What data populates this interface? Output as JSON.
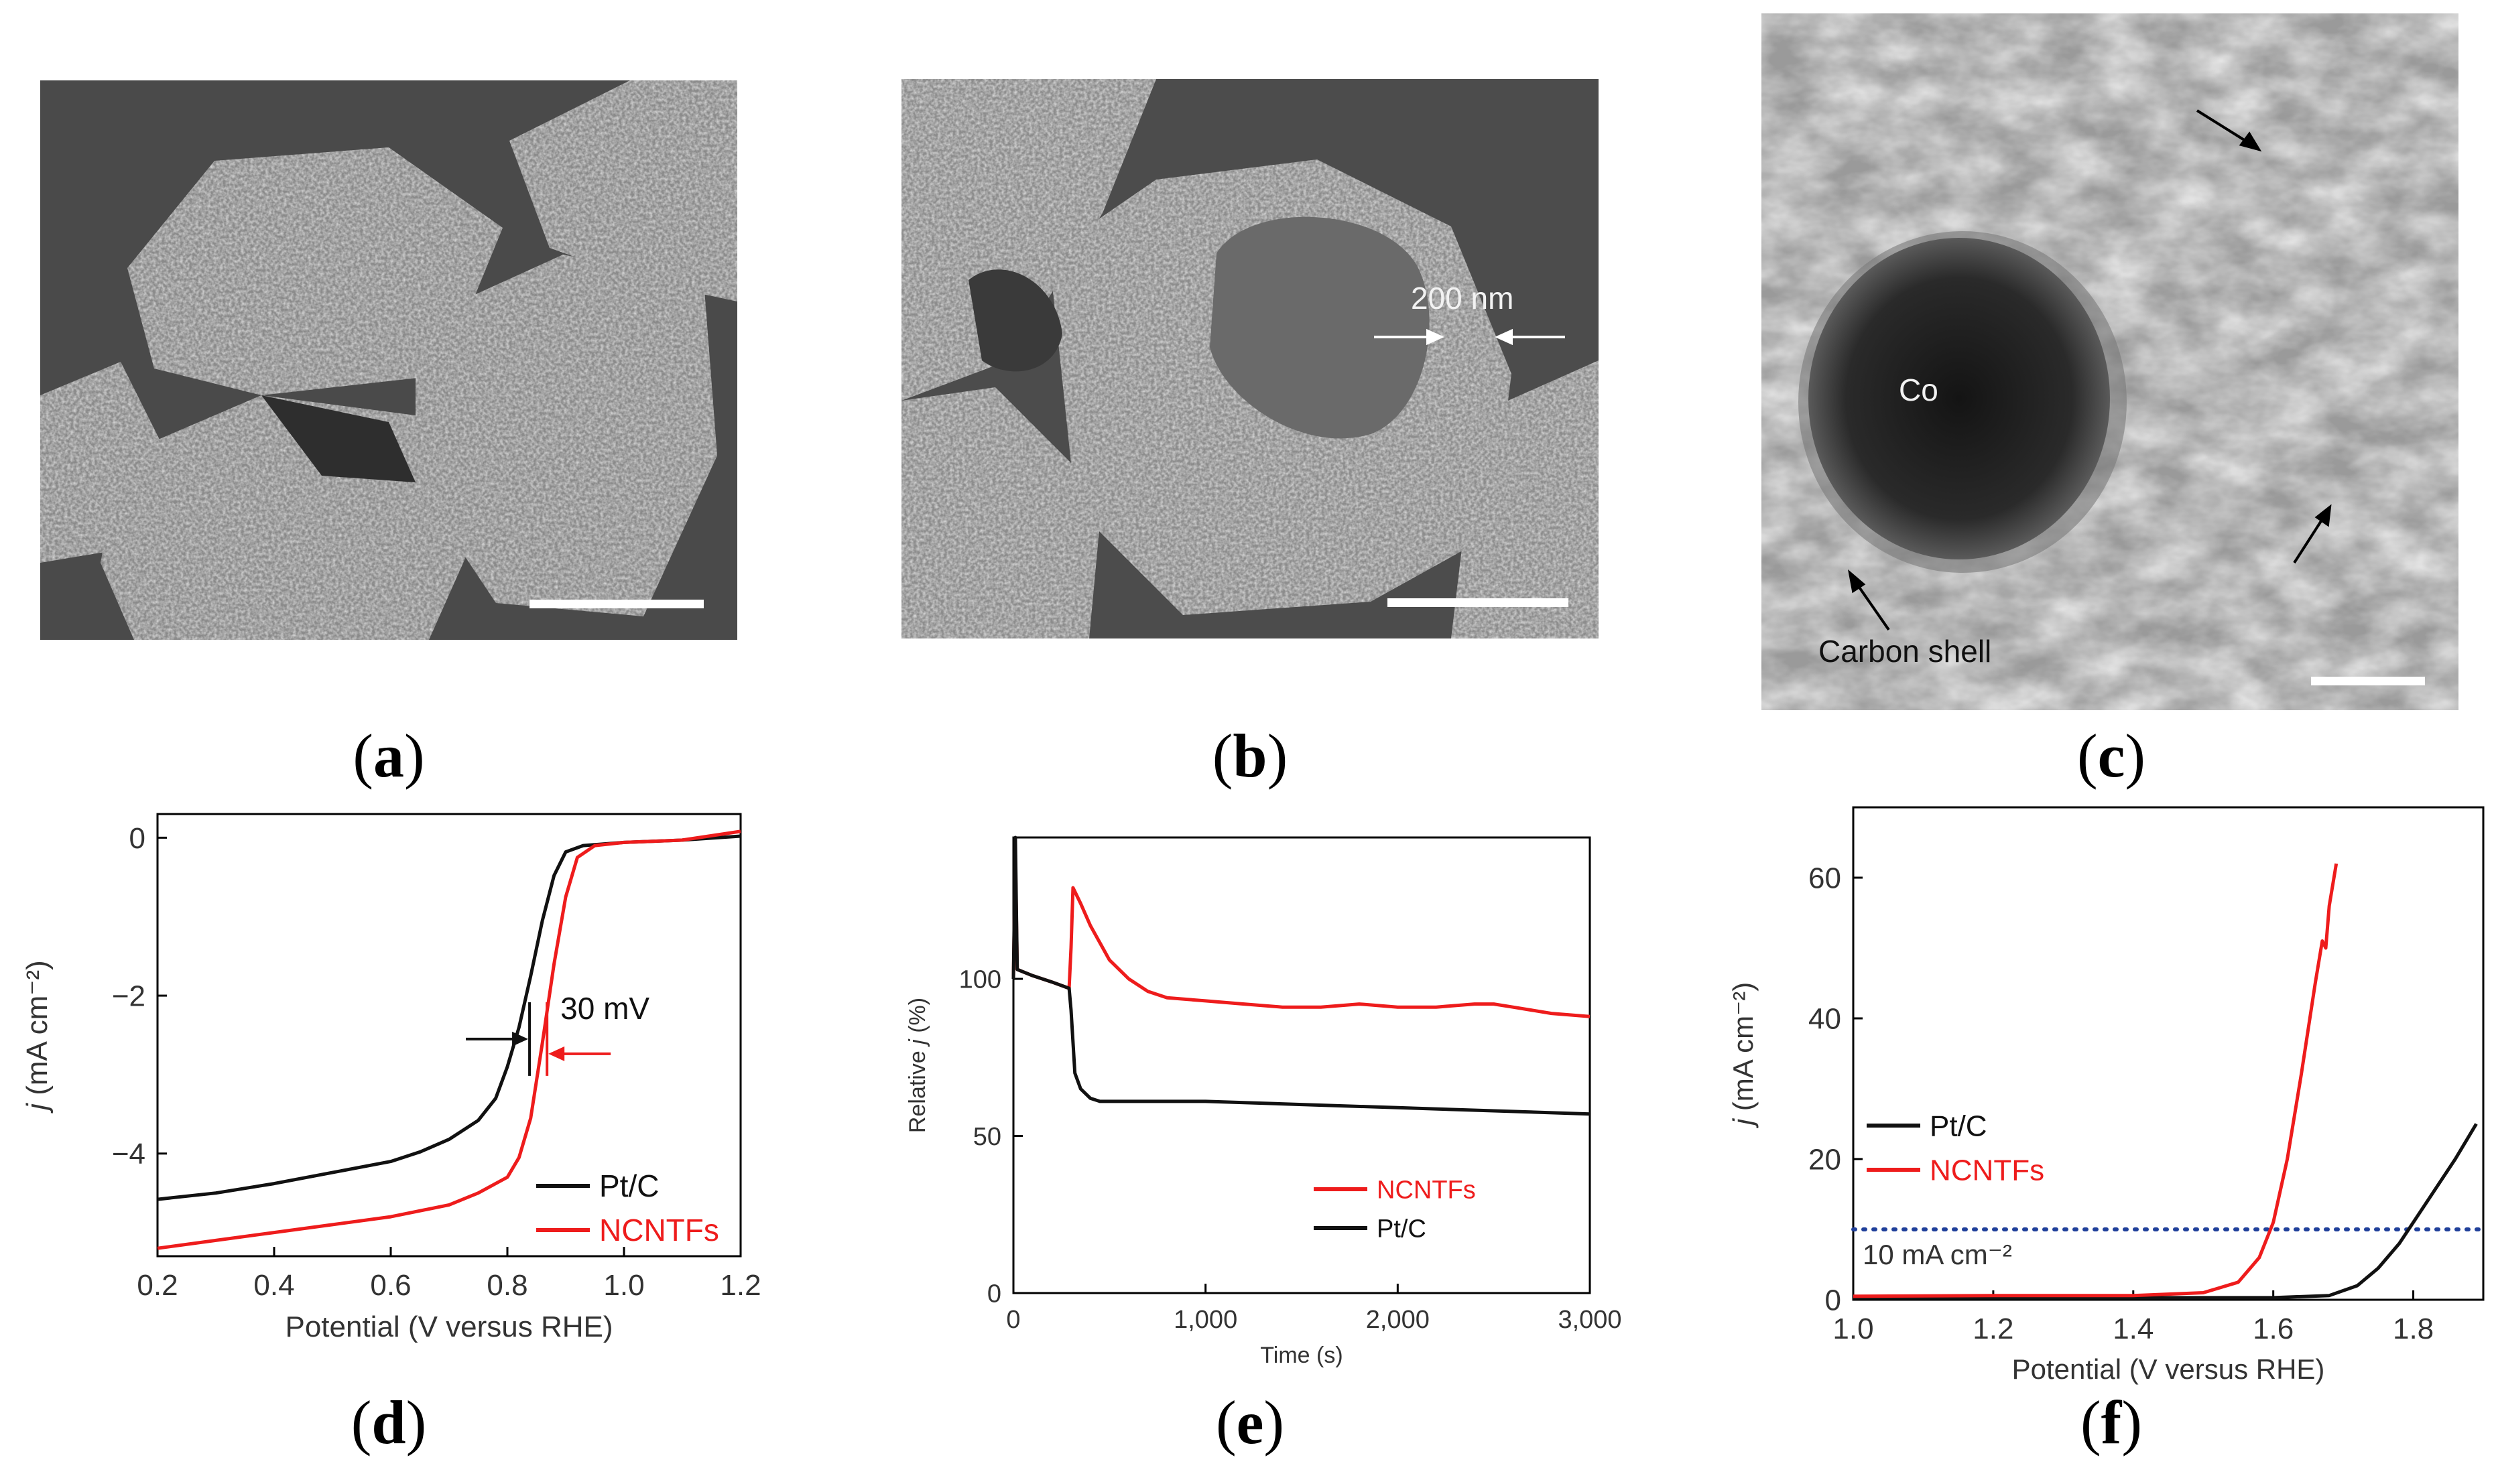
{
  "panels": {
    "a": {
      "label": "a"
    },
    "b": {
      "label": "b"
    },
    "c": {
      "label": "c"
    },
    "d": {
      "label": "d"
    },
    "e": {
      "label": "e"
    },
    "f": {
      "label": "f"
    }
  },
  "micrographs": {
    "b": {
      "annotation": "200 nm"
    },
    "c": {
      "particle_label": "Co",
      "shell_label": "Carbon shell"
    }
  },
  "colors": {
    "black_series": "#111111",
    "red_series": "#ee1c1c",
    "dotted_line": "#1f3f9a"
  },
  "chart_data": [
    {
      "panel": "d",
      "type": "line",
      "xlabel": "Potential (V versus RHE)",
      "ylabel": "j (mA cm⁻²)",
      "xlim": [
        0.2,
        1.2
      ],
      "ylim": [
        -5.3,
        0.3
      ],
      "xticks": [
        "0.2",
        "0.4",
        "0.6",
        "0.8",
        "1.0",
        "1.2"
      ],
      "yticks": [
        "0",
        "−2",
        "−4"
      ],
      "ytick_values": [
        0,
        -2,
        -4
      ],
      "xtick_values": [
        0.2,
        0.4,
        0.6,
        0.8,
        1.0,
        1.2
      ],
      "annotation": "30 mV",
      "legend": [
        "Pt/C",
        "NCNTFs"
      ],
      "legend_position": "bottom-right",
      "series": [
        {
          "name": "Pt/C",
          "color": "#111111",
          "x": [
            0.2,
            0.3,
            0.4,
            0.5,
            0.6,
            0.65,
            0.7,
            0.75,
            0.78,
            0.8,
            0.82,
            0.84,
            0.86,
            0.88,
            0.9,
            0.93,
            1.0,
            1.1,
            1.2
          ],
          "y": [
            -4.58,
            -4.5,
            -4.38,
            -4.24,
            -4.1,
            -3.98,
            -3.82,
            -3.58,
            -3.3,
            -2.9,
            -2.4,
            -1.75,
            -1.05,
            -0.48,
            -0.18,
            -0.1,
            -0.06,
            -0.03,
            0.02
          ]
        },
        {
          "name": "NCNTFs",
          "color": "#ee1c1c",
          "x": [
            0.2,
            0.3,
            0.4,
            0.5,
            0.6,
            0.7,
            0.75,
            0.8,
            0.82,
            0.84,
            0.86,
            0.88,
            0.9,
            0.92,
            0.95,
            1.0,
            1.1,
            1.2
          ],
          "y": [
            -5.2,
            -5.1,
            -5.0,
            -4.9,
            -4.8,
            -4.65,
            -4.5,
            -4.3,
            -4.05,
            -3.55,
            -2.6,
            -1.6,
            -0.75,
            -0.25,
            -0.1,
            -0.06,
            -0.03,
            0.08
          ]
        }
      ]
    },
    {
      "panel": "e",
      "type": "line",
      "xlabel": "Time (s)",
      "ylabel": "Relative j (%)",
      "xlim": [
        0,
        3000
      ],
      "ylim": [
        0,
        145
      ],
      "xticks": [
        "0",
        "1,000",
        "2,000",
        "3,000"
      ],
      "xtick_values": [
        0,
        1000,
        2000,
        3000
      ],
      "yticks": [
        "0",
        "50",
        "100"
      ],
      "ytick_values": [
        0,
        50,
        100
      ],
      "legend": [
        "NCNTFs",
        "Pt/C"
      ],
      "legend_position": "bottom-right",
      "series": [
        {
          "name": "NCNTFs",
          "color": "#ee1c1c",
          "x": [
            0,
            10,
            20,
            100,
            200,
            290,
            300,
            310,
            350,
            400,
            500,
            600,
            700,
            800,
            1000,
            1200,
            1400,
            1600,
            1800,
            2000,
            2200,
            2400,
            2500,
            2600,
            2800,
            3000
          ],
          "y": [
            100,
            140,
            103,
            101,
            99,
            97,
            110,
            129,
            124,
            117,
            106,
            100,
            96,
            94,
            93,
            92,
            91,
            91,
            92,
            91,
            91,
            92,
            92,
            91,
            89,
            88
          ]
        },
        {
          "name": "Pt/C",
          "color": "#111111",
          "x": [
            0,
            10,
            20,
            100,
            200,
            290,
            300,
            320,
            350,
            400,
            450,
            500,
            700,
            1000,
            1500,
            2000,
            2500,
            3000
          ],
          "y": [
            100,
            145,
            103,
            101,
            99,
            97,
            90,
            70,
            65,
            62,
            61,
            61,
            61,
            61,
            60,
            59,
            58,
            57
          ]
        }
      ]
    },
    {
      "panel": "f",
      "type": "line",
      "xlabel": "Potential (V versus RHE)",
      "ylabel": "j (mA cm⁻²)",
      "xlim": [
        1.0,
        1.9
      ],
      "ylim": [
        0,
        70
      ],
      "xticks": [
        "1.0",
        "1.2",
        "1.4",
        "1.6",
        "1.8"
      ],
      "xtick_values": [
        1.0,
        1.2,
        1.4,
        1.6,
        1.8
      ],
      "yticks": [
        "0",
        "20",
        "40",
        "60"
      ],
      "ytick_values": [
        0,
        20,
        40,
        60
      ],
      "reference_line": {
        "y": 10,
        "label": "10 mA cm⁻²"
      },
      "legend": [
        "Pt/C",
        "NCNTFs"
      ],
      "legend_position": "center-left",
      "series": [
        {
          "name": "Pt/C",
          "color": "#111111",
          "x": [
            1.0,
            1.2,
            1.4,
            1.6,
            1.68,
            1.72,
            1.75,
            1.78,
            1.8,
            1.83,
            1.86,
            1.89
          ],
          "y": [
            0.3,
            0.3,
            0.3,
            0.3,
            0.6,
            2.0,
            4.5,
            8.0,
            11.0,
            15.5,
            20.0,
            25.0
          ]
        },
        {
          "name": "NCNTFs",
          "color": "#ee1c1c",
          "x": [
            1.0,
            1.2,
            1.4,
            1.5,
            1.55,
            1.58,
            1.6,
            1.62,
            1.64,
            1.66,
            1.67,
            1.675,
            1.68,
            1.69
          ],
          "y": [
            0.5,
            0.6,
            0.6,
            1.0,
            2.5,
            6.0,
            11.0,
            20.0,
            32.0,
            45.0,
            51.0,
            50.0,
            56.0,
            62.0
          ]
        }
      ]
    }
  ]
}
